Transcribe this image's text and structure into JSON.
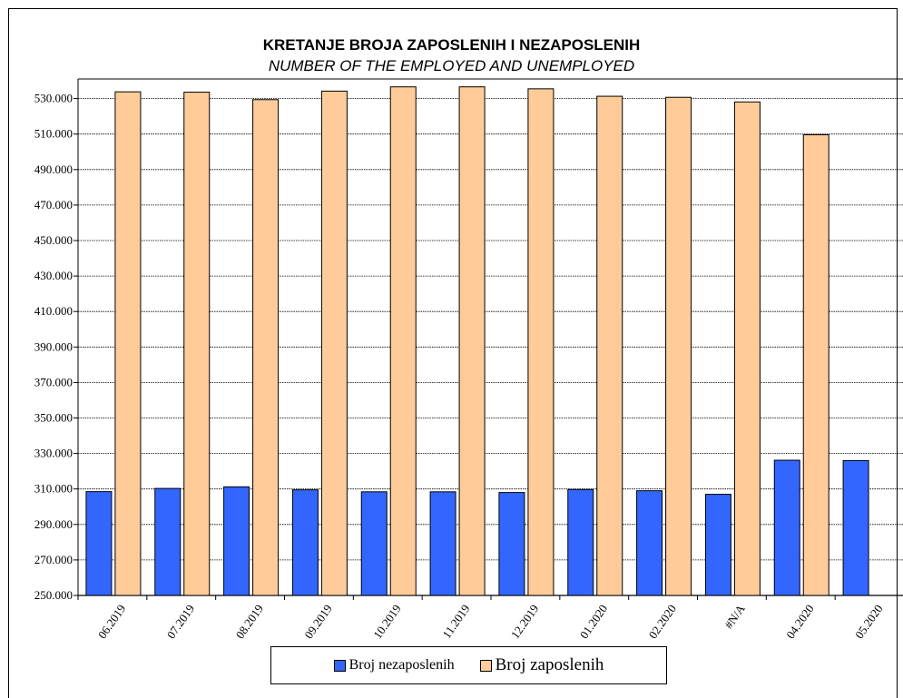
{
  "chart_data": {
    "type": "bar",
    "title": "KRETANJE BROJA ZAPOSLENIH I NEZAPOSLENIH",
    "subtitle": "NUMBER OF THE EMPLOYED AND UNEMPLOYED",
    "categories": [
      "06.2019",
      "07.2019",
      "08.2019",
      "09.2019",
      "10.2019",
      "11.2019",
      "12.2019",
      "01.2020",
      "02.2020",
      "#N/A",
      "04.2020",
      "05.2020"
    ],
    "series": [
      {
        "name": "Broj nezaposlenih",
        "color": "#3366ff",
        "values": [
          308500,
          310300,
          311200,
          309500,
          308400,
          308400,
          308000,
          309700,
          309000,
          307000,
          326200,
          326000
        ]
      },
      {
        "name": "Broj zaposlenih",
        "color": "#ffcc99",
        "values": [
          533800,
          533600,
          529400,
          534200,
          536600,
          536600,
          535500,
          531300,
          530700,
          528100,
          509600,
          null
        ]
      }
    ],
    "yticks": [
      "530.000",
      "510.000",
      "490.000",
      "470.000",
      "450.000",
      "430.000",
      "410.000",
      "390.000",
      "370.000",
      "350.000",
      "330.000",
      "310.000",
      "290.000",
      "270.000",
      "250.000"
    ],
    "ylim": [
      250000,
      540000
    ],
    "grid": true,
    "legend": "bottom"
  }
}
